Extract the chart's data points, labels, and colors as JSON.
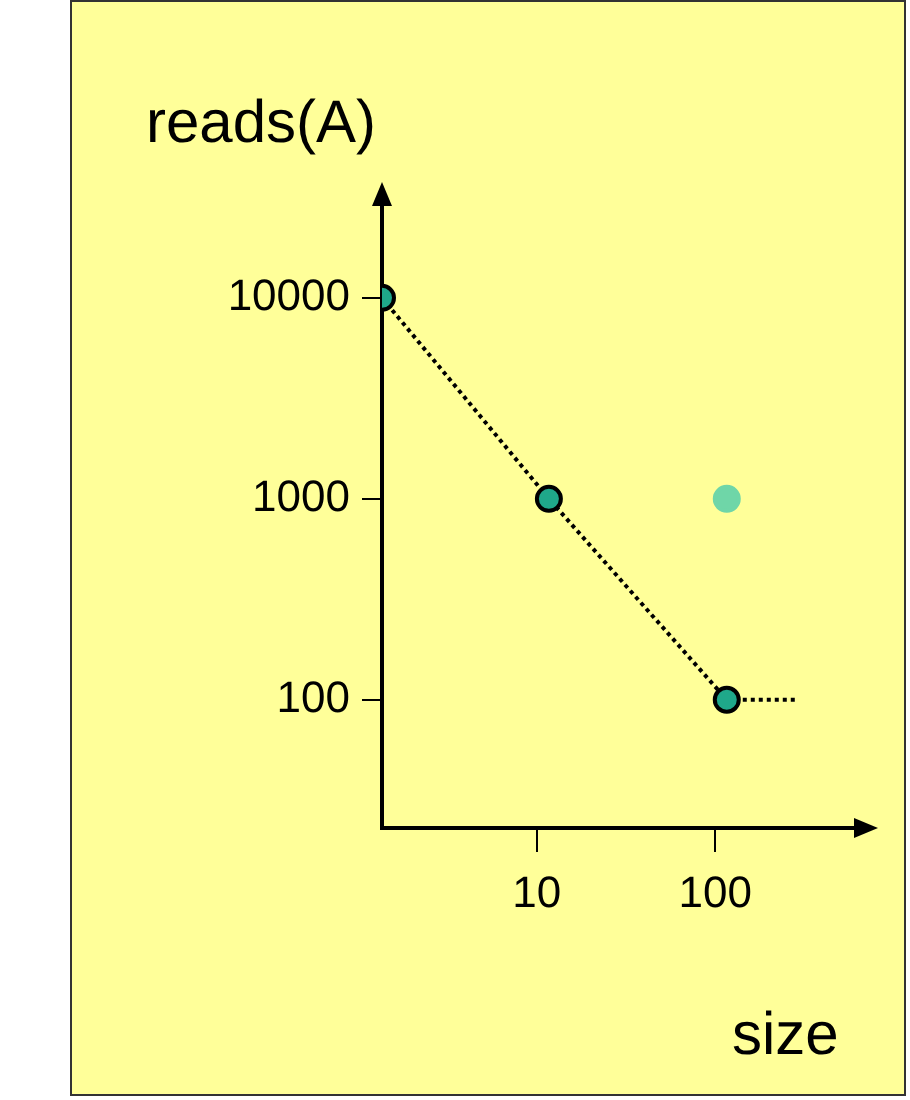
{
  "chart_data": {
    "type": "line",
    "xlabel": "size",
    "ylabel": "reads(A)",
    "log": "xy",
    "xlim": [
      1.36,
      630
    ],
    "ylim": [
      23,
      30000
    ],
    "xticks": [
      10,
      100
    ],
    "yticks": [
      100,
      1000,
      10000
    ],
    "grid": false,
    "legend": false,
    "line_style": "dotted",
    "series": [
      {
        "marker": "circle",
        "color": "#1fa88a",
        "x": [
          1.36,
          11.7,
          116
        ],
        "values": [
          10000,
          1000,
          100
        ]
      },
      {
        "marker": "none",
        "color": "#000000",
        "x": [
          116,
          293
        ],
        "values": [
          100,
          100
        ]
      },
      {
        "type": "scatter",
        "marker": "circle",
        "color": "#6fd6a8",
        "x": [
          116
        ],
        "values": [
          1000
        ]
      }
    ]
  }
}
